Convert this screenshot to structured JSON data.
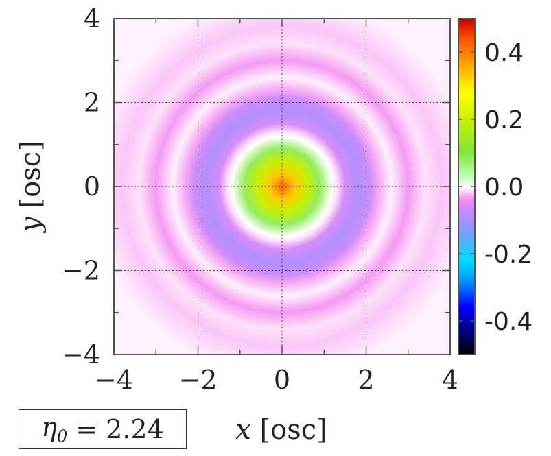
{
  "chart_data": {
    "type": "heatmap",
    "title": "",
    "xlabel": "x [osc]",
    "ylabel": "y [osc]",
    "xlim": [
      -4,
      4
    ],
    "ylim": [
      -4,
      4
    ],
    "xticks": [
      -4,
      -2,
      0,
      2,
      4
    ],
    "yticks": [
      -4,
      -2,
      0,
      2,
      4
    ],
    "xtick_labels": [
      "−4",
      "−2",
      "0",
      "2",
      "4"
    ],
    "ytick_labels": [
      "−4",
      "−2",
      "0",
      "2",
      "4"
    ],
    "grid": true,
    "field_profile": {
      "description_free": true,
      "r": [
        0,
        0.3,
        0.6,
        0.9,
        1.2,
        1.3,
        1.5,
        1.8,
        2.1,
        2.3,
        2.6,
        3.0,
        3.4,
        3.8,
        4.5
      ],
      "value": [
        0.42,
        0.33,
        0.2,
        0.08,
        0.0,
        -0.01,
        -0.06,
        -0.09,
        -0.07,
        -0.03,
        -0.005,
        -0.035,
        -0.01,
        -0.02,
        -0.005
      ]
    },
    "colorbar": {
      "range": [
        -0.5,
        0.5
      ],
      "ticks": [
        0.4,
        0.2,
        0.0,
        -0.2,
        -0.4
      ],
      "tick_labels": [
        "0.4",
        "0.2",
        "0.0",
        "-0.2",
        "-0.4"
      ]
    }
  },
  "param": {
    "symbol": "η",
    "subscript": "0",
    "equals": "=",
    "value": "2.24"
  },
  "colors": {
    "frame": "#555555",
    "grid": "#333333"
  }
}
